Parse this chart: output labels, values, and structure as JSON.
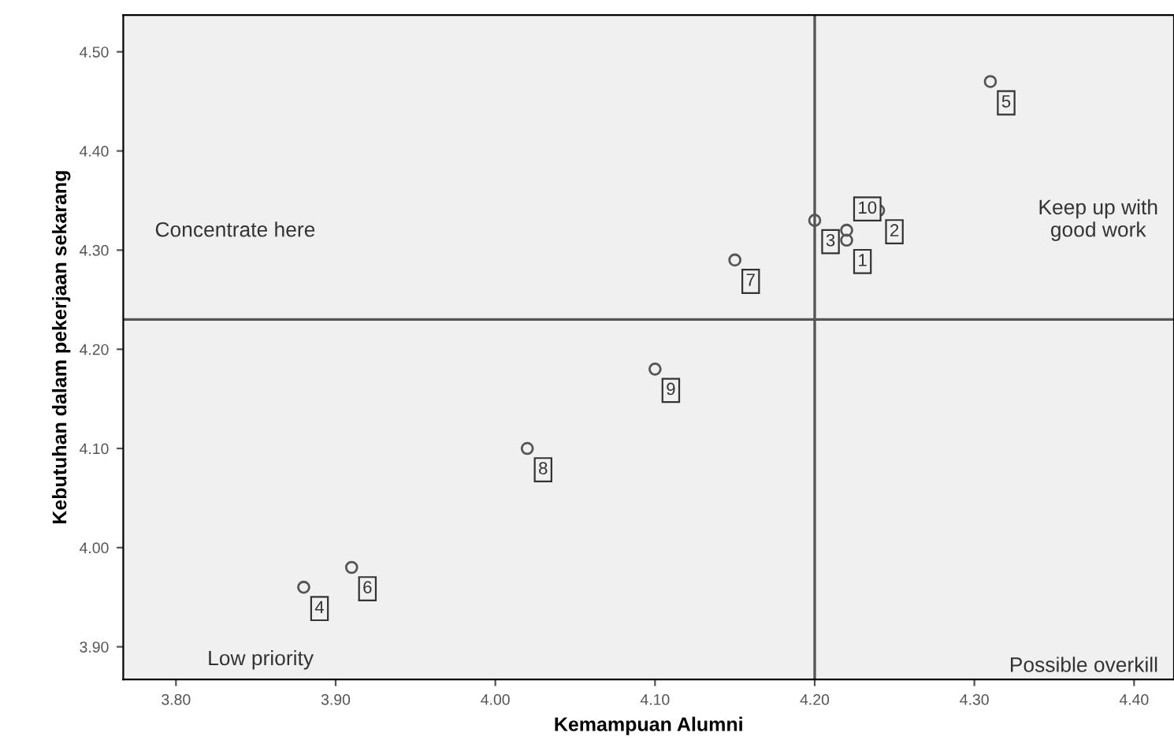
{
  "chart_data": {
    "type": "scatter",
    "xlabel": "Kemampuan Alumni",
    "ylabel": "Kebutuhan dalam pekerjaan sekarang",
    "x": [
      4.22,
      4.24,
      4.2,
      3.88,
      4.31,
      3.91,
      4.15,
      4.02,
      4.1,
      4.22
    ],
    "series": [
      {
        "color": "#555555",
        "values": [
          4.31,
          4.34,
          4.33,
          3.96,
          4.47,
          3.98,
          4.29,
          4.1,
          4.18,
          4.32
        ]
      }
    ],
    "value_labels": [
      "1",
      "2",
      "3",
      "4",
      "5",
      "6",
      "7",
      "8",
      "9",
      "10"
    ],
    "marker": "circle",
    "xlim": [
      3.767,
      4.425
    ],
    "ylim": [
      3.867,
      4.537
    ],
    "xticks": [
      {
        "value": 3.8,
        "label": "3.80"
      },
      {
        "value": 3.9,
        "label": "3.90"
      },
      {
        "value": 4.0,
        "label": "4.00"
      },
      {
        "value": 4.1,
        "label": "4.10"
      },
      {
        "value": 4.2,
        "label": "4.20"
      },
      {
        "value": 4.3,
        "label": "4.30"
      },
      {
        "value": 4.4,
        "label": "4.40"
      }
    ],
    "yticks": [
      {
        "value": 3.9,
        "label": "3.90"
      },
      {
        "value": 4.0,
        "label": "4.00"
      },
      {
        "value": 4.1,
        "label": "4.10"
      },
      {
        "value": 4.2,
        "label": "4.20"
      },
      {
        "value": 4.3,
        "label": "4.30"
      },
      {
        "value": 4.4,
        "label": "4.40"
      },
      {
        "value": 4.5,
        "label": "4.50"
      }
    ],
    "ref_lines": [
      {
        "axis": "x",
        "value": 4.2,
        "color": "#555555"
      },
      {
        "axis": "y",
        "value": 4.23,
        "color": "#555555"
      }
    ],
    "annotations": [
      "Concentrate here",
      "Keep up with\ngood work",
      "Low priority",
      "Possible overkill"
    ],
    "grid": false
  }
}
